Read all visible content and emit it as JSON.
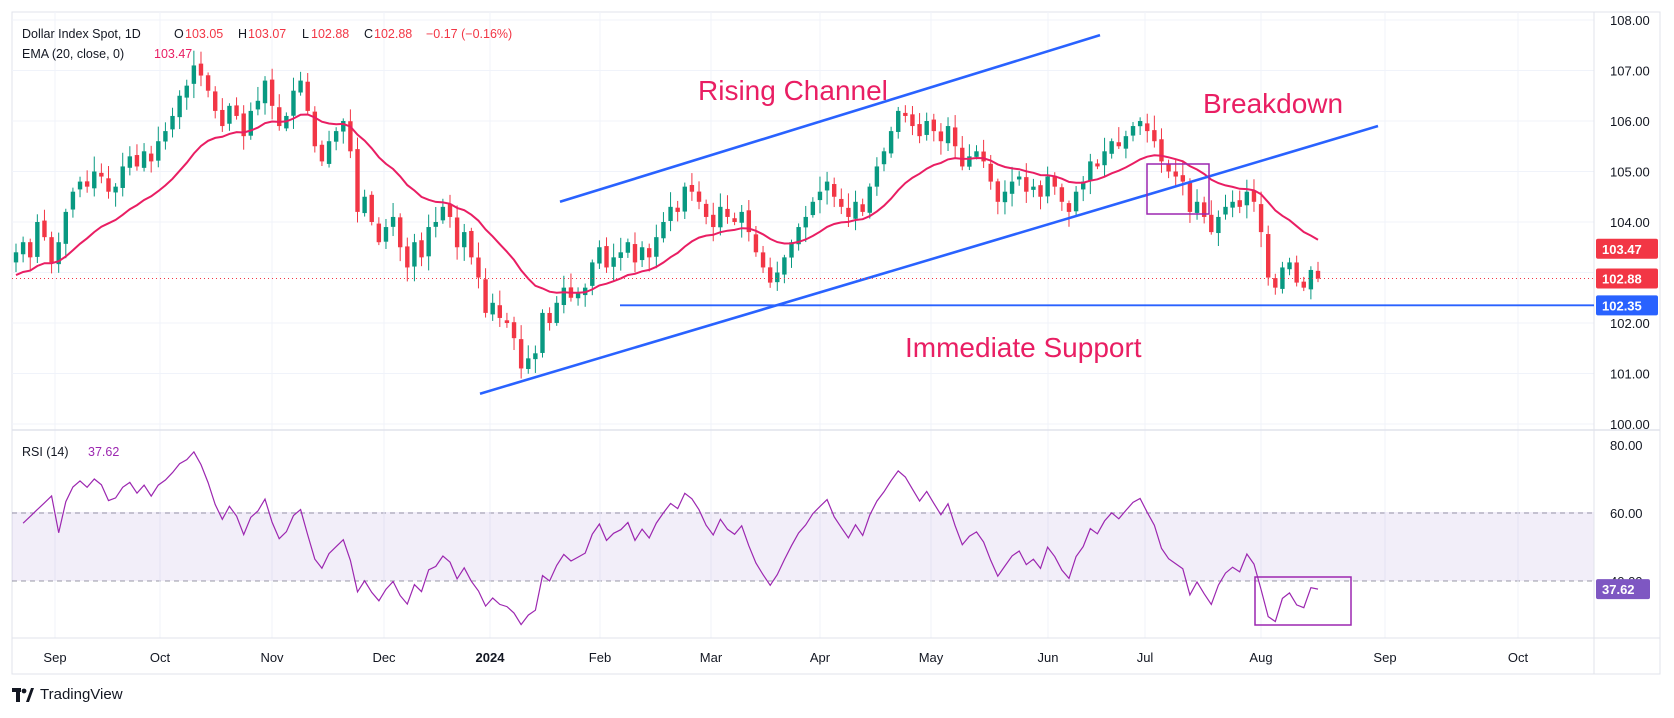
{
  "header": {
    "symbol": "Dollar Index Spot, 1D",
    "open_label": "O",
    "open": "103.05",
    "high_label": "H",
    "high": "103.07",
    "low_label": "L",
    "low": "102.88",
    "close_label": "C",
    "close": "102.88",
    "change": "−0.17 (−0.16%)",
    "ema_label": "EMA (20, close, 0)",
    "ema_value": "103.47",
    "rsi_label": "RSI (14)",
    "rsi_value": "37.62"
  },
  "brand": {
    "name": "TradingView"
  },
  "colors": {
    "bull": "#089981",
    "bear": "#f23645",
    "ema": "#e91e63",
    "rsi": "#9c27b0",
    "trendline": "#2962ff",
    "annotation": "#e91e63",
    "rsi_band": "#7e57c2"
  },
  "chart_data": [
    {
      "type": "candlestick",
      "title": "Dollar Index Spot, 1D",
      "x_ticks": [
        "Sep",
        "Oct",
        "Nov",
        "Dec",
        "2024",
        "Feb",
        "Mar",
        "Apr",
        "May",
        "Jun",
        "Jul",
        "Aug",
        "Sep",
        "Oct"
      ],
      "y_ticks": [
        "108.00",
        "107.00",
        "106.00",
        "105.00",
        "104.00",
        "103.00",
        "102.00",
        "101.00",
        "100.00"
      ],
      "ylim": [
        100.0,
        108.0
      ],
      "price_labels": [
        {
          "value": 103.47,
          "text": "103.47",
          "color": "#f23645"
        },
        {
          "value": 102.88,
          "text": "102.88",
          "color": "#f23645"
        },
        {
          "value": 102.35,
          "text": "102.35",
          "color": "#2962ff"
        }
      ],
      "close_series": [
        103.4,
        103.6,
        103.3,
        104.0,
        103.7,
        103.2,
        103.6,
        104.2,
        104.6,
        104.8,
        104.7,
        105.0,
        104.9,
        104.6,
        104.7,
        105.1,
        105.3,
        105.1,
        105.4,
        105.2,
        105.6,
        105.8,
        106.1,
        106.5,
        106.7,
        107.1,
        106.9,
        106.6,
        106.2,
        105.9,
        106.3,
        106.1,
        105.7,
        106.2,
        106.4,
        106.8,
        106.3,
        105.9,
        106.1,
        106.6,
        106.8,
        106.2,
        105.5,
        105.2,
        105.6,
        105.8,
        106.0,
        105.4,
        104.2,
        104.5,
        104.0,
        103.6,
        103.9,
        104.1,
        103.5,
        103.1,
        103.6,
        103.3,
        103.9,
        104.0,
        104.3,
        104.1,
        103.5,
        103.8,
        103.3,
        102.9,
        102.2,
        102.4,
        102.1,
        102.0,
        101.7,
        101.1,
        101.3,
        101.4,
        102.2,
        102.0,
        102.4,
        102.7,
        102.5,
        102.6,
        102.7,
        103.2,
        103.5,
        103.1,
        103.3,
        103.4,
        103.6,
        103.2,
        103.5,
        103.3,
        103.7,
        104.0,
        104.3,
        104.2,
        104.7,
        104.6,
        104.4,
        104.1,
        103.9,
        104.3,
        104.1,
        104.0,
        104.2,
        103.8,
        103.4,
        103.1,
        102.8,
        103.0,
        103.3,
        103.6,
        103.9,
        104.1,
        104.4,
        104.6,
        104.8,
        104.5,
        104.3,
        104.1,
        104.4,
        104.2,
        104.7,
        105.1,
        105.4,
        105.8,
        106.2,
        106.1,
        105.9,
        105.7,
        106.0,
        105.8,
        105.6,
        105.9,
        105.5,
        105.1,
        105.3,
        105.4,
        105.2,
        104.8,
        104.4,
        104.6,
        104.8,
        104.9,
        104.6,
        104.7,
        104.5,
        104.9,
        104.7,
        104.4,
        104.2,
        104.6,
        104.8,
        105.2,
        105.1,
        105.4,
        105.6,
        105.5,
        105.7,
        105.9,
        106.0,
        105.8,
        105.6,
        105.2,
        105.0,
        104.9,
        104.8,
        104.2,
        104.4,
        104.1,
        103.8,
        104.1,
        104.3,
        104.4,
        104.3,
        104.6,
        104.4,
        103.8,
        102.9,
        102.7,
        103.1,
        103.2,
        102.8,
        102.7,
        103.05,
        102.88
      ],
      "ema_series": {
        "name": "EMA (20, close, 0)",
        "last": 103.47
      },
      "trendlines": [
        {
          "name": "rising-channel-upper",
          "from": {
            "x": "Jan 19",
            "y": 104.4
          },
          "to": {
            "x": "Jul 23",
            "y": 107.7
          }
        },
        {
          "name": "rising-channel-lower",
          "from": {
            "x": "Dec 29",
            "y": 100.6
          },
          "to": {
            "x": "Aug 22",
            "y": 105.9
          }
        },
        {
          "name": "immediate-support",
          "from": {
            "x": "Feb 1",
            "y": 102.35
          },
          "to": {
            "x": "Aug 16",
            "y": 102.35
          }
        }
      ],
      "annotations": [
        "Rising Channel",
        "Breakdown",
        "Immediate Support"
      ]
    },
    {
      "type": "line",
      "title": "RSI (14)",
      "y_ticks": [
        "80.00",
        "60.00",
        "40.00"
      ],
      "ylim": [
        25,
        80
      ],
      "bands": [
        40,
        60
      ],
      "last": 37.62,
      "last_text": "37.62"
    }
  ]
}
